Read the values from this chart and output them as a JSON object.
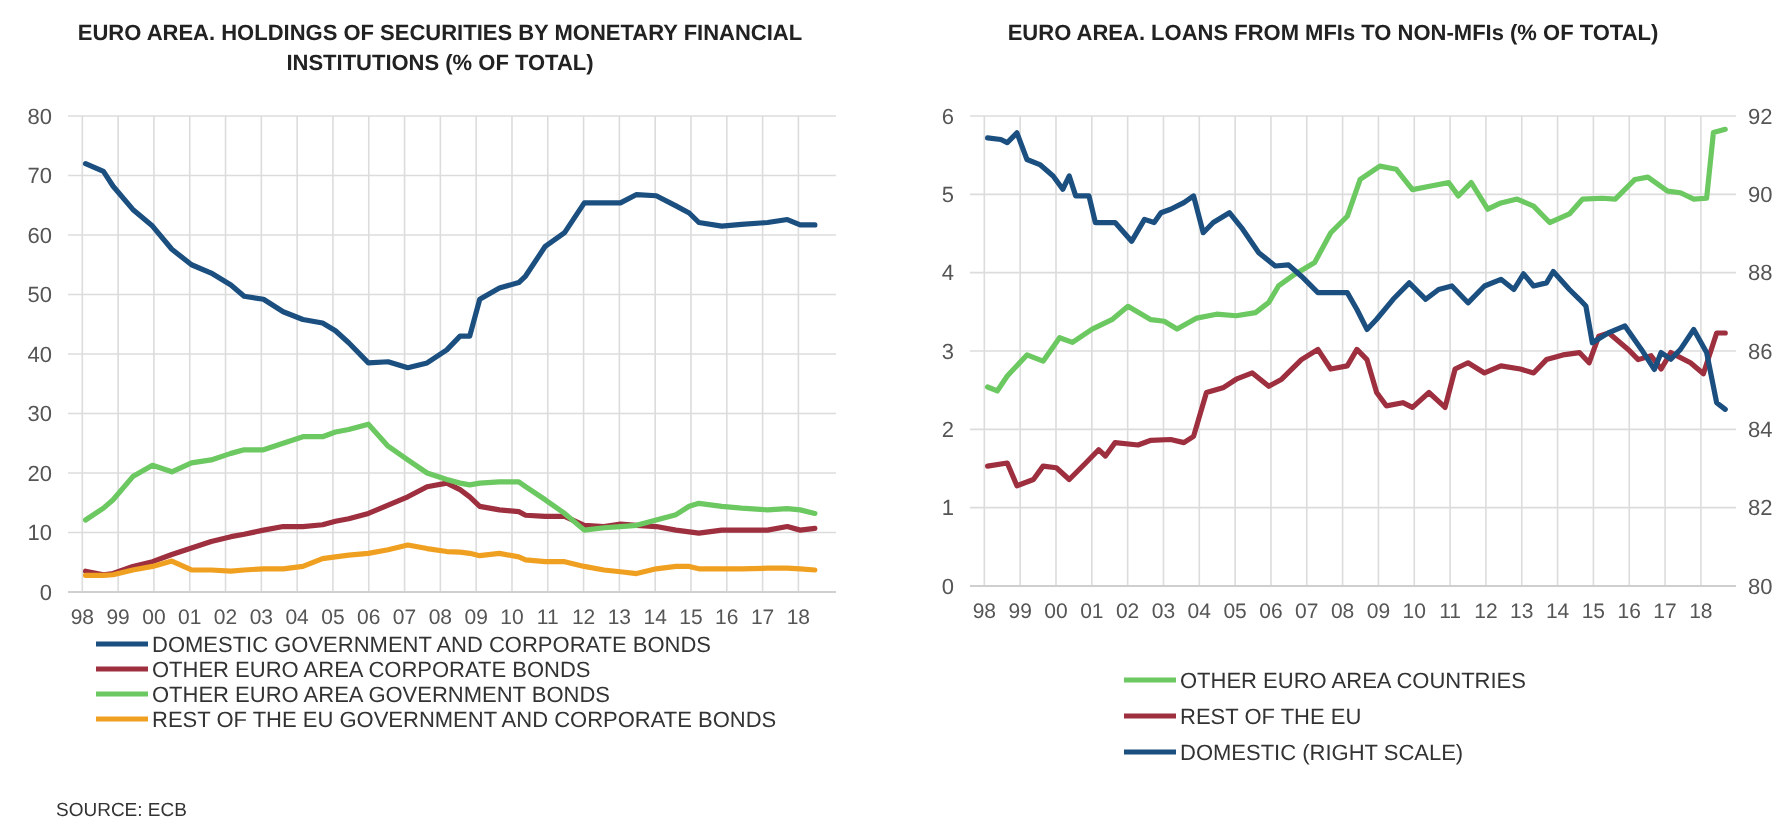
{
  "chart_data": [
    {
      "type": "line",
      "title": "EURO AREA. HOLDINGS OF SECURITIES BY MONETARY FINANCIAL INSTITUTIONS (% OF TOTAL)",
      "xlim": [
        1997.6,
        2019.05
      ],
      "xticks": [
        {
          "value": 1998,
          "label": "98"
        },
        {
          "value": 1999,
          "label": "99"
        },
        {
          "value": 2000,
          "label": "00"
        },
        {
          "value": 2001,
          "label": "01"
        },
        {
          "value": 2002,
          "label": "02"
        },
        {
          "value": 2003,
          "label": "03"
        },
        {
          "value": 2004,
          "label": "04"
        },
        {
          "value": 2005,
          "label": "05"
        },
        {
          "value": 2006,
          "label": "06"
        },
        {
          "value": 2007,
          "label": "07"
        },
        {
          "value": 2008,
          "label": "08"
        },
        {
          "value": 2009,
          "label": "09"
        },
        {
          "value": 2010,
          "label": "10"
        },
        {
          "value": 2011,
          "label": "11"
        },
        {
          "value": 2012,
          "label": "12"
        },
        {
          "value": 2013,
          "label": "13"
        },
        {
          "value": 2014,
          "label": "14"
        },
        {
          "value": 2015,
          "label": "15"
        },
        {
          "value": 2016,
          "label": "16"
        },
        {
          "value": 2017,
          "label": "17"
        },
        {
          "value": 2018,
          "label": "18"
        }
      ],
      "ylim": [
        0,
        80
      ],
      "yticks": [
        0,
        10,
        20,
        30,
        40,
        50,
        60,
        70,
        80
      ],
      "grid": true,
      "legend": "bottom",
      "annotations": [
        "SOURCE: ECB"
      ],
      "x": [
        1998.09,
        1998.59,
        1998.86,
        1999.41,
        1999.96,
        2000.5,
        2001.05,
        2001.6,
        2002.15,
        2002.52,
        2003.06,
        2003.61,
        2004.16,
        2004.71,
        2005.07,
        2005.44,
        2005.99,
        2006.54,
        2007.09,
        2007.63,
        2008.18,
        2008.55,
        2008.82,
        2009.1,
        2009.65,
        2010.19,
        2010.38,
        2010.93,
        2011.47,
        2012.02,
        2012.57,
        2013.03,
        2013.48,
        2014.03,
        2014.58,
        2014.95,
        2015.22,
        2015.86,
        2016.41,
        2017.14,
        2017.69,
        2018.05,
        2018.46
      ],
      "series": [
        {
          "name": "DOMESTIC GOVERNMENT AND CORPORATE BONDS",
          "color": "#1b4f80",
          "values": [
            72,
            70.7,
            68.2,
            64.3,
            61.5,
            57.6,
            55,
            53.6,
            51.6,
            49.7,
            49.2,
            47.1,
            45.8,
            45.2,
            43.9,
            41.9,
            38.5,
            38.7,
            37.7,
            38.5,
            40.7,
            43,
            43,
            49.2,
            51.1,
            52,
            53.1,
            58.1,
            60.4,
            65.4,
            65.4,
            65.4,
            66.8,
            66.6,
            64.9,
            63.7,
            62.1,
            61.5,
            61.8,
            62.1,
            62.6,
            61.7,
            61.7
          ]
        },
        {
          "name": "OTHER EURO AREA CORPORATE BONDS",
          "color": "#9e2f3f",
          "values": [
            3.5,
            2.9,
            3.1,
            4.3,
            5.1,
            6.3,
            7.4,
            8.5,
            9.3,
            9.7,
            10.4,
            11,
            11,
            11.3,
            11.9,
            12.3,
            13.2,
            14.6,
            16,
            17.7,
            18.3,
            17.2,
            16,
            14.4,
            13.8,
            13.5,
            12.9,
            12.7,
            12.7,
            11.2,
            11,
            11.4,
            11.2,
            11,
            10.4,
            10.1,
            9.9,
            10.4,
            10.4,
            10.4,
            11,
            10.4,
            10.7
          ]
        },
        {
          "name": "OTHER EURO AREA GOVERNMENT BONDS",
          "color": "#6cc860",
          "values": [
            12.1,
            14.1,
            15.5,
            19.4,
            21.3,
            20.2,
            21.7,
            22.2,
            23.3,
            23.9,
            23.9,
            25,
            26.1,
            26.1,
            26.9,
            27.3,
            28.2,
            24.5,
            22.2,
            20,
            18.9,
            18.3,
            18,
            18.3,
            18.5,
            18.5,
            17.7,
            15.5,
            13.2,
            10.4,
            10.8,
            11,
            11.2,
            12.1,
            13,
            14.4,
            14.9,
            14.4,
            14.1,
            13.8,
            14,
            13.8,
            13.2
          ]
        },
        {
          "name": "REST OF THE EU GOVERNMENT AND CORPORATE BONDS",
          "color": "#f0a020",
          "values": [
            2.8,
            2.8,
            2.9,
            3.7,
            4.3,
            5.2,
            3.7,
            3.7,
            3.5,
            3.7,
            3.9,
            3.9,
            4.3,
            5.6,
            5.9,
            6.2,
            6.5,
            7.1,
            7.9,
            7.3,
            6.8,
            6.7,
            6.5,
            6.1,
            6.5,
            5.9,
            5.4,
            5.1,
            5.1,
            4.3,
            3.7,
            3.4,
            3.1,
            3.9,
            4.3,
            4.3,
            3.9,
            3.9,
            3.9,
            4,
            4,
            3.9,
            3.7
          ]
        }
      ]
    },
    {
      "type": "line",
      "title": "EURO AREA. LOANS FROM MFIs TO NON-MFIs (% OF TOTAL)",
      "xlim": [
        1997.6,
        2018.98
      ],
      "xticks": [
        {
          "value": 1998,
          "label": "98"
        },
        {
          "value": 1999,
          "label": "99"
        },
        {
          "value": 2000,
          "label": "00"
        },
        {
          "value": 2001,
          "label": "01"
        },
        {
          "value": 2002,
          "label": "02"
        },
        {
          "value": 2003,
          "label": "03"
        },
        {
          "value": 2004,
          "label": "04"
        },
        {
          "value": 2005,
          "label": "05"
        },
        {
          "value": 2006,
          "label": "06"
        },
        {
          "value": 2007,
          "label": "07"
        },
        {
          "value": 2008,
          "label": "08"
        },
        {
          "value": 2009,
          "label": "09"
        },
        {
          "value": 2010,
          "label": "10"
        },
        {
          "value": 2011,
          "label": "11"
        },
        {
          "value": 2012,
          "label": "12"
        },
        {
          "value": 2013,
          "label": "13"
        },
        {
          "value": 2014,
          "label": "14"
        },
        {
          "value": 2015,
          "label": "15"
        },
        {
          "value": 2016,
          "label": "16"
        },
        {
          "value": 2017,
          "label": "17"
        },
        {
          "value": 2018,
          "label": "18"
        }
      ],
      "ylim": [
        0,
        6
      ],
      "yticks": [
        0,
        1,
        2,
        3,
        4,
        5,
        6
      ],
      "y2lim": [
        80,
        92
      ],
      "y2ticks": [
        80,
        82,
        84,
        86,
        88,
        90,
        92
      ],
      "grid": true,
      "legend": "bottom",
      "series": [
        {
          "name": "OTHER EURO AREA COUNTRIES",
          "color": "#6cc860",
          "x": [
            1998.09,
            1998.36,
            1998.64,
            1999.19,
            1999.64,
            2000.1,
            2000.46,
            2001.01,
            2001.56,
            2002.01,
            2002.65,
            2003.02,
            2003.38,
            2003.93,
            2004.48,
            2005.03,
            2005.57,
            2005.94,
            2006.21,
            2006.67,
            2007.22,
            2007.67,
            2008.13,
            2008.49,
            2009.04,
            2009.5,
            2009.95,
            2010.5,
            2010.96,
            2011.23,
            2011.59,
            2012.05,
            2012.42,
            2012.87,
            2013.33,
            2013.78,
            2014.33,
            2014.7,
            2015.24,
            2015.61,
            2016.16,
            2016.52,
            2017.07,
            2017.43,
            2017.8,
            2018.16,
            2018.35,
            2018.68
          ],
          "values": [
            2.54,
            2.49,
            2.68,
            2.95,
            2.87,
            3.17,
            3.11,
            3.28,
            3.4,
            3.57,
            3.4,
            3.38,
            3.28,
            3.42,
            3.47,
            3.45,
            3.49,
            3.62,
            3.83,
            3.98,
            4.13,
            4.51,
            4.72,
            5.19,
            5.36,
            5.32,
            5.06,
            5.11,
            5.15,
            4.98,
            5.15,
            4.81,
            4.89,
            4.94,
            4.85,
            4.64,
            4.75,
            4.94,
            4.95,
            4.94,
            5.19,
            5.22,
            5.04,
            5.02,
            4.94,
            4.95,
            5.79,
            5.83
          ]
        },
        {
          "name": "REST OF THE EU",
          "color": "#9e2f3f",
          "x": [
            1998.09,
            1998.64,
            1998.91,
            1999.37,
            1999.64,
            2000.01,
            2000.37,
            2000.83,
            2001.19,
            2001.38,
            2001.65,
            2002.29,
            2002.65,
            2003.2,
            2003.57,
            2003.84,
            2004.2,
            2004.66,
            2005.03,
            2005.48,
            2005.94,
            2006.3,
            2006.85,
            2007.31,
            2007.67,
            2008.13,
            2008.4,
            2008.68,
            2008.95,
            2009.22,
            2009.68,
            2009.95,
            2010.41,
            2010.86,
            2011.14,
            2011.5,
            2011.96,
            2012.42,
            2012.96,
            2013.33,
            2013.69,
            2014.15,
            2014.61,
            2014.88,
            2015.15,
            2015.43,
            2015.97,
            2016.25,
            2016.61,
            2016.89,
            2017.16,
            2017.71,
            2018.07,
            2018.44,
            2018.68
          ],
          "values": [
            1.53,
            1.57,
            1.28,
            1.36,
            1.53,
            1.51,
            1.36,
            1.57,
            1.74,
            1.66,
            1.83,
            1.8,
            1.86,
            1.87,
            1.83,
            1.91,
            2.47,
            2.53,
            2.64,
            2.72,
            2.55,
            2.64,
            2.89,
            3.02,
            2.77,
            2.81,
            3.02,
            2.89,
            2.47,
            2.3,
            2.34,
            2.28,
            2.47,
            2.28,
            2.77,
            2.85,
            2.72,
            2.81,
            2.77,
            2.72,
            2.89,
            2.95,
            2.98,
            2.85,
            3.19,
            3.23,
            3.02,
            2.89,
            2.94,
            2.77,
            2.98,
            2.85,
            2.71,
            3.23,
            3.23
          ]
        },
        {
          "name": "DOMESTIC (RIGHT SCALE)",
          "color": "#1b4f80",
          "axis": "y2",
          "x": [
            1998.09,
            1998.46,
            1998.64,
            1998.91,
            1999.19,
            1999.55,
            1999.92,
            2000.19,
            2000.37,
            2000.55,
            2000.92,
            2001.1,
            2001.65,
            2002.11,
            2002.47,
            2002.74,
            2002.93,
            2003.2,
            2003.57,
            2003.84,
            2004.11,
            2004.39,
            2004.84,
            2005.21,
            2005.66,
            2006.12,
            2006.49,
            2006.85,
            2007.31,
            2007.67,
            2008.13,
            2008.4,
            2008.68,
            2008.95,
            2009.41,
            2009.86,
            2010.32,
            2010.68,
            2011.05,
            2011.5,
            2011.96,
            2012.42,
            2012.78,
            2013.05,
            2013.33,
            2013.69,
            2013.88,
            2014.33,
            2014.61,
            2014.79,
            2014.97,
            2015.43,
            2015.88,
            2016.34,
            2016.7,
            2016.89,
            2017.16,
            2017.43,
            2017.8,
            2018.16,
            2018.44,
            2018.68
          ],
          "values": [
            91.44,
            91.4,
            91.32,
            91.57,
            90.89,
            90.76,
            90.47,
            90.13,
            90.47,
            89.96,
            89.96,
            89.28,
            89.28,
            88.8,
            89.36,
            89.28,
            89.53,
            89.62,
            89.79,
            89.96,
            89.02,
            89.28,
            89.53,
            89.11,
            88.51,
            88.17,
            88.2,
            87.91,
            87.49,
            87.49,
            87.49,
            87.06,
            86.55,
            86.81,
            87.32,
            87.74,
            87.32,
            87.57,
            87.66,
            87.23,
            87.66,
            87.83,
            87.57,
            87.97,
            87.66,
            87.74,
            88.03,
            87.57,
            87.32,
            87.15,
            86.21,
            86.47,
            86.64,
            86.04,
            85.53,
            85.96,
            85.79,
            86.04,
            86.55,
            85.96,
            84.68,
            84.51
          ]
        }
      ]
    }
  ]
}
